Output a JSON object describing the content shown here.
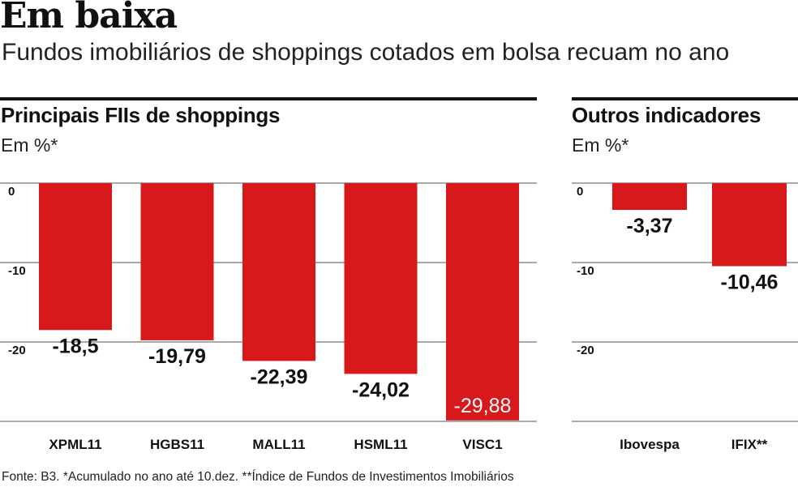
{
  "headline": "Em baixa",
  "subtitle": "Fundos imobiliários de shoppings cotados em bolsa recuam no ano",
  "footnote": "Fonte: B3. *Acumulado no ano até 10.dez. **Índice de Fundos de Investimentos Imobiliários",
  "colors": {
    "bar": "#d7191c",
    "grid": "#555555",
    "text": "#111111",
    "inside_label": "#ffffff"
  },
  "chart_data": [
    {
      "type": "bar",
      "title": "Principais FIIs de shoppings",
      "ylabel": "Em %*",
      "categories": [
        "XPML11",
        "HGBS11",
        "MALL11",
        "HSML11",
        "VISC1"
      ],
      "values": [
        -18.5,
        -19.79,
        -22.39,
        -24.02,
        -29.88
      ],
      "value_labels": [
        "-18,5",
        "-19,79",
        "-22,39",
        "-24,02",
        "-29,88"
      ],
      "yticks": [
        0,
        -10,
        -20
      ],
      "ytick_labels": [
        "0",
        "-10",
        "-20"
      ],
      "ylim": [
        -30,
        0
      ],
      "grid": true
    },
    {
      "type": "bar",
      "title": "Outros indicadores",
      "ylabel": "Em %*",
      "categories": [
        "Ibovespa",
        "IFIX**"
      ],
      "values": [
        -3.37,
        -10.46
      ],
      "value_labels": [
        "-3,37",
        "-10,46"
      ],
      "yticks": [
        0,
        -10,
        -20
      ],
      "ytick_labels": [
        "0",
        "-10",
        "-20"
      ],
      "ylim": [
        -30,
        0
      ],
      "grid": true
    }
  ]
}
